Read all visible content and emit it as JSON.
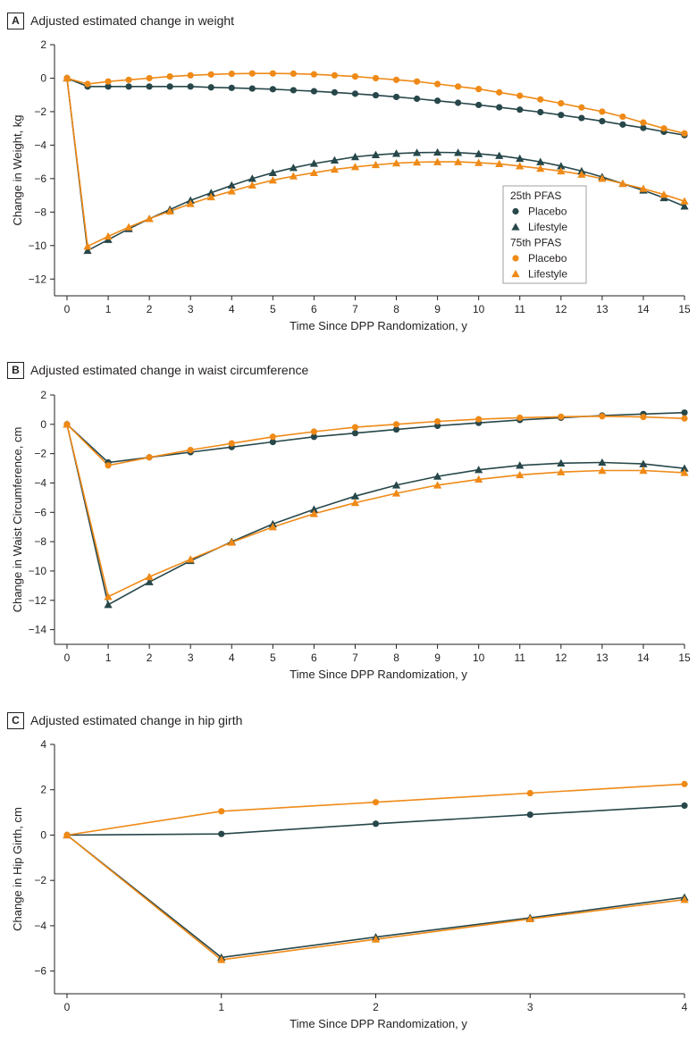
{
  "colors": {
    "dark": "#27474a",
    "orange": "#ef8a17",
    "axis": "#231f20"
  },
  "legend": {
    "group1_title": "25th PFAS",
    "group1_placebo": "Placebo",
    "group1_lifestyle": "Lifestyle",
    "group2_title": "75th PFAS",
    "group2_placebo": "Placebo",
    "group2_lifestyle": "Lifestyle"
  },
  "chart_data": [
    {
      "type": "line",
      "letter": "A",
      "title": "Adjusted estimated change in weight",
      "xlabel": "Time Since DPP Randomization, y",
      "ylabel": "Change in Weight, kg",
      "xlim": [
        0,
        15
      ],
      "ylim": [
        -13,
        2
      ],
      "xticks": [
        0,
        1,
        2,
        3,
        4,
        5,
        6,
        7,
        8,
        9,
        10,
        11,
        12,
        13,
        14,
        15
      ],
      "yticks": [
        2,
        0,
        -2,
        -4,
        -6,
        -8,
        -10,
        -12
      ],
      "legend_position": "inside-right",
      "x": [
        0,
        0.5,
        1,
        1.5,
        2,
        2.5,
        3,
        3.5,
        4,
        4.5,
        5,
        5.5,
        6,
        6.5,
        7,
        7.5,
        8,
        8.5,
        9,
        9.5,
        10,
        10.5,
        11,
        11.5,
        12,
        12.5,
        13,
        13.5,
        14,
        14.5,
        15
      ],
      "series": [
        {
          "name": "Placebo",
          "group": "25th PFAS",
          "color": "#27474a",
          "marker": "circle",
          "values": [
            0,
            -0.5,
            -0.5,
            -0.5,
            -0.5,
            -0.5,
            -0.5,
            -0.55,
            -0.58,
            -0.62,
            -0.66,
            -0.72,
            -0.78,
            -0.85,
            -0.93,
            -1.02,
            -1.12,
            -1.23,
            -1.35,
            -1.47,
            -1.6,
            -1.74,
            -1.88,
            -2.03,
            -2.2,
            -2.38,
            -2.57,
            -2.77,
            -2.97,
            -3.2,
            -3.4
          ]
        },
        {
          "name": "Lifestyle",
          "group": "25th PFAS",
          "color": "#27474a",
          "marker": "triangle",
          "values": [
            0,
            -10.3,
            -9.65,
            -9.0,
            -8.4,
            -7.85,
            -7.3,
            -6.85,
            -6.4,
            -6.0,
            -5.65,
            -5.35,
            -5.1,
            -4.9,
            -4.7,
            -4.58,
            -4.5,
            -4.45,
            -4.43,
            -4.45,
            -4.52,
            -4.63,
            -4.8,
            -5.0,
            -5.25,
            -5.55,
            -5.9,
            -6.3,
            -6.7,
            -7.15,
            -7.65
          ]
        },
        {
          "name": "Placebo",
          "group": "75th PFAS",
          "color": "#ef8a17",
          "marker": "circle",
          "values": [
            0,
            -0.35,
            -0.2,
            -0.1,
            0.0,
            0.1,
            0.17,
            0.22,
            0.26,
            0.28,
            0.28,
            0.27,
            0.23,
            0.17,
            0.1,
            0.0,
            -0.1,
            -0.2,
            -0.35,
            -0.5,
            -0.65,
            -0.85,
            -1.05,
            -1.27,
            -1.5,
            -1.75,
            -2.0,
            -2.3,
            -2.65,
            -3.0,
            -3.3
          ]
        },
        {
          "name": "Lifestyle",
          "group": "75th PFAS",
          "color": "#ef8a17",
          "marker": "triangle",
          "values": [
            0,
            -10.05,
            -9.45,
            -8.9,
            -8.4,
            -7.95,
            -7.5,
            -7.1,
            -6.75,
            -6.4,
            -6.1,
            -5.85,
            -5.65,
            -5.45,
            -5.3,
            -5.18,
            -5.08,
            -5.02,
            -5.0,
            -5.0,
            -5.05,
            -5.12,
            -5.25,
            -5.4,
            -5.55,
            -5.75,
            -6.0,
            -6.3,
            -6.6,
            -6.95,
            -7.35
          ]
        }
      ]
    },
    {
      "type": "line",
      "letter": "B",
      "title": "Adjusted estimated change in waist circumference",
      "xlabel": "Time Since DPP Randomization, y",
      "ylabel": "Change in Waist Circumference, cm",
      "xlim": [
        0,
        15
      ],
      "ylim": [
        -15,
        2
      ],
      "xticks": [
        0,
        1,
        2,
        3,
        4,
        5,
        6,
        7,
        8,
        9,
        10,
        11,
        12,
        13,
        14,
        15
      ],
      "yticks": [
        2,
        0,
        -2,
        -4,
        -6,
        -8,
        -10,
        -12,
        -14
      ],
      "x": [
        0,
        1,
        2,
        3,
        4,
        5,
        6,
        7,
        8,
        9,
        10,
        11,
        12,
        13,
        14,
        15
      ],
      "series": [
        {
          "name": "Placebo",
          "group": "25th PFAS",
          "color": "#27474a",
          "marker": "circle",
          "values": [
            0,
            -2.6,
            -2.25,
            -1.9,
            -1.55,
            -1.2,
            -0.85,
            -0.6,
            -0.35,
            -0.1,
            0.1,
            0.3,
            0.45,
            0.6,
            0.7,
            0.8
          ]
        },
        {
          "name": "Lifestyle",
          "group": "25th PFAS",
          "color": "#27474a",
          "marker": "triangle",
          "values": [
            0,
            -12.3,
            -10.75,
            -9.3,
            -8.0,
            -6.8,
            -5.8,
            -4.9,
            -4.15,
            -3.55,
            -3.1,
            -2.8,
            -2.65,
            -2.6,
            -2.7,
            -3.0
          ]
        },
        {
          "name": "Placebo",
          "group": "75th PFAS",
          "color": "#ef8a17",
          "marker": "circle",
          "values": [
            0,
            -2.8,
            -2.25,
            -1.75,
            -1.3,
            -0.85,
            -0.5,
            -0.2,
            0.0,
            0.2,
            0.35,
            0.45,
            0.52,
            0.55,
            0.5,
            0.4
          ]
        },
        {
          "name": "Lifestyle",
          "group": "75th PFAS",
          "color": "#ef8a17",
          "marker": "triangle",
          "values": [
            0,
            -11.75,
            -10.4,
            -9.2,
            -8.05,
            -7.0,
            -6.1,
            -5.35,
            -4.7,
            -4.15,
            -3.75,
            -3.45,
            -3.25,
            -3.15,
            -3.15,
            -3.3
          ]
        }
      ]
    },
    {
      "type": "line",
      "letter": "C",
      "title": "Adjusted estimated change in hip girth",
      "xlabel": "Time Since DPP Randomization, y",
      "ylabel": "Change in Hip Girth, cm",
      "xlim": [
        0,
        4
      ],
      "ylim": [
        -7,
        4
      ],
      "xticks": [
        0,
        1,
        2,
        3,
        4
      ],
      "yticks": [
        4,
        2,
        0,
        -2,
        -4,
        -6
      ],
      "x": [
        0,
        1,
        2,
        3,
        4
      ],
      "series": [
        {
          "name": "Placebo",
          "group": "25th PFAS",
          "color": "#27474a",
          "marker": "circle",
          "values": [
            0,
            0.05,
            0.5,
            0.9,
            1.3
          ]
        },
        {
          "name": "Lifestyle",
          "group": "25th PFAS",
          "color": "#27474a",
          "marker": "triangle",
          "values": [
            0,
            -5.4,
            -4.5,
            -3.65,
            -2.75
          ]
        },
        {
          "name": "Placebo",
          "group": "75th PFAS",
          "color": "#ef8a17",
          "marker": "circle",
          "values": [
            0,
            1.05,
            1.45,
            1.85,
            2.25
          ]
        },
        {
          "name": "Lifestyle",
          "group": "75th PFAS",
          "color": "#ef8a17",
          "marker": "triangle",
          "values": [
            0,
            -5.5,
            -4.6,
            -3.7,
            -2.85
          ]
        }
      ]
    }
  ]
}
